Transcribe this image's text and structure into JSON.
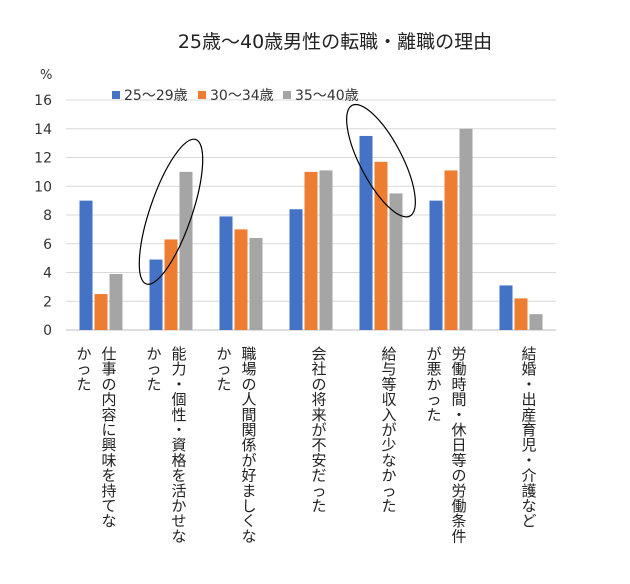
{
  "chart_data": {
    "type": "bar",
    "title": "25歳～40歳男性の転職・離職の理由",
    "ylabel": "%",
    "ylim": [
      0,
      16
    ],
    "yticks": [
      0,
      2,
      4,
      6,
      8,
      10,
      12,
      14,
      16
    ],
    "grid": true,
    "legend_position": "top-left",
    "categories": [
      [
        "仕事の内容に興味を持てな",
        "かった"
      ],
      [
        "能力・個性・資格を活かせな",
        "かった"
      ],
      [
        "職場の人間関係が好ましくな",
        "かった"
      ],
      [
        "会社の将来が不安だった"
      ],
      [
        "給与等収入が少なかった"
      ],
      [
        "労働時間・休日等の労働条件",
        "が悪かった"
      ],
      [
        "結婚・出産育児・介護など"
      ]
    ],
    "series": [
      {
        "name": "25～29歳",
        "color": "#4472C4",
        "values": [
          9.0,
          4.9,
          7.9,
          8.4,
          13.5,
          9.0,
          3.1
        ]
      },
      {
        "name": "30～34歳",
        "color": "#ED7D31",
        "values": [
          2.5,
          6.3,
          7.0,
          11.0,
          11.7,
          11.1,
          2.2
        ]
      },
      {
        "name": "35～40歳",
        "color": "#A5A5A5",
        "values": [
          3.9,
          11.0,
          6.4,
          11.1,
          9.5,
          14.0,
          1.1
        ]
      }
    ],
    "highlight_ellipses": [
      1,
      4
    ]
  }
}
